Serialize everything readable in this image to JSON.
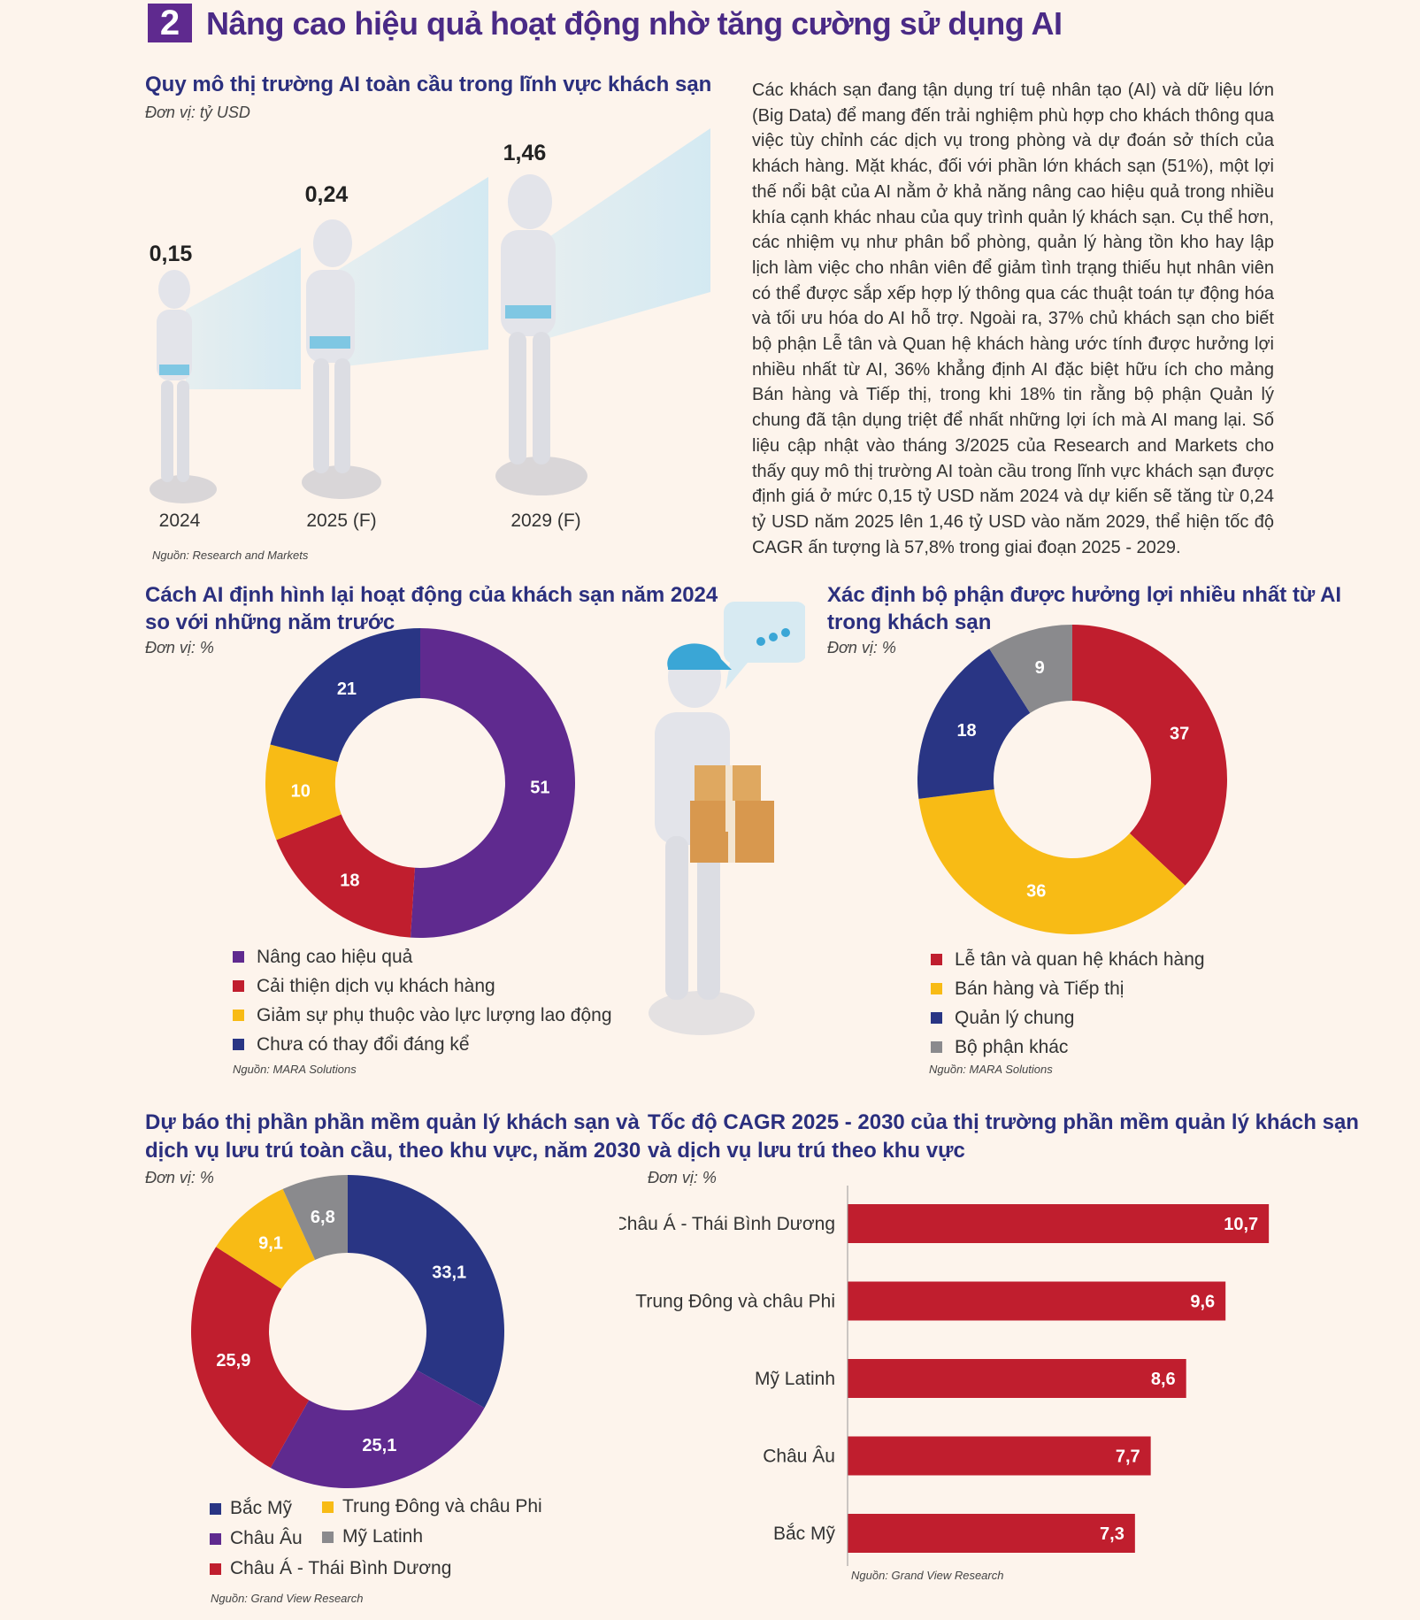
{
  "header": {
    "number": "2",
    "title": "Nâng cao hiệu quả hoạt động nhờ tăng cường sử dụng AI"
  },
  "market_size": {
    "title": "Quy mô thị trường AI toàn cầu trong lĩnh vực khách sạn",
    "unit": "Đơn vị: tỷ USD",
    "source": "Nguồn: Research and Markets",
    "chart_data": {
      "type": "bar",
      "categories": [
        "2024",
        "2025 (F)",
        "2029 (F)"
      ],
      "values": [
        0.15,
        0.24,
        1.46
      ],
      "labels": [
        "0,15",
        "0,24",
        "1,46"
      ],
      "ylabel": "tỷ USD"
    }
  },
  "paragraph": "Các khách sạn đang tận dụng trí tuệ nhân tạo (AI) và dữ liệu lớn (Big Data) để mang đến trải nghiệm phù hợp cho khách thông qua việc tùy chỉnh các dịch vụ trong phòng và dự đoán sở thích của khách hàng. Mặt khác, đối với phần lớn khách sạn (51%), một lợi thế nổi bật của AI nằm ở khả năng nâng cao hiệu quả trong nhiều khía cạnh khác nhau của quy trình quản lý khách sạn. Cụ thể hơn, các nhiệm vụ như phân bổ phòng, quản lý hàng tồn kho hay lập lịch làm việc cho nhân viên để giảm tình trạng thiếu hụt nhân viên có thể được sắp xếp hợp lý thông qua các thuật toán tự động hóa và tối ưu hóa do AI hỗ trợ. Ngoài ra, 37% chủ khách sạn cho biết bộ phận Lễ tân và Quan hệ khách hàng ước tính được hưởng lợi nhiều nhất từ AI, 36% khẳng định AI đặc biệt hữu ích cho mảng Bán hàng và Tiếp thị, trong khi 18% tin rằng bộ phận Quản lý chung đã tận dụng triệt để nhất những lợi ích mà AI mang lại. Số liệu cập nhật vào tháng 3/2025 của Research and Markets cho thấy quy mô thị trường AI toàn cầu trong lĩnh vực khách sạn được định giá ở mức 0,15 tỷ USD năm 2024 và dự kiến sẽ tăng từ 0,24 tỷ USD năm 2025 lên 1,46 tỷ USD vào năm 2029, thể hiện tốc độ CAGR ấn tượng là 57,8% trong giai đoạn 2025 - 2029.",
  "reshape": {
    "title_line1": "Cách AI định hình lại hoạt động của khách sạn năm 2024",
    "title_line2": "so với những năm trước",
    "unit": "Đơn vị: %",
    "source": "Nguồn: MARA Solutions",
    "chart_data": {
      "type": "pie",
      "slices": [
        {
          "label": "Nâng cao hiệu quả",
          "value": 51,
          "text": "51",
          "color": "#5f2a8f"
        },
        {
          "label": "Cải thiện dịch vụ khách hàng",
          "value": 18,
          "text": "18",
          "color": "#c01e2e"
        },
        {
          "label": "Giảm sự phụ thuộc vào lực lượng lao động",
          "value": 10,
          "text": "10",
          "color": "#f8bb15"
        },
        {
          "label": "Chưa có thay đổi đáng kể",
          "value": 21,
          "text": "21",
          "color": "#293584"
        }
      ]
    }
  },
  "departments": {
    "title_line1": "Xác định bộ phận được hưởng lợi nhiều nhất từ AI",
    "title_line2": "trong khách sạn",
    "unit": "Đơn vị: %",
    "source": "Nguồn: MARA Solutions",
    "chart_data": {
      "type": "pie",
      "slices": [
        {
          "label": "Lễ tân và quan hệ khách hàng",
          "value": 37,
          "text": "37",
          "color": "#c01e2e"
        },
        {
          "label": "Bán hàng và Tiếp thị",
          "value": 36,
          "text": "36",
          "color": "#f8bb15"
        },
        {
          "label": "Quản lý chung",
          "value": 18,
          "text": "18",
          "color": "#293584"
        },
        {
          "label": "Bộ phận khác",
          "value": 9,
          "text": "9",
          "color": "#8a8a8d"
        }
      ]
    }
  },
  "regional_share": {
    "title_line1": "Dự báo thị phần phần mềm quản lý khách sạn và",
    "title_line2": "dịch vụ lưu trú toàn cầu, theo khu vực, năm 2030",
    "unit": "Đơn vị: %",
    "source": "Nguồn: Grand View Research",
    "chart_data": {
      "type": "pie",
      "slices": [
        {
          "label": "Bắc Mỹ",
          "value": 33.1,
          "text": "33,1",
          "color": "#293584"
        },
        {
          "label": "Châu Âu",
          "value": 25.1,
          "text": "25,1",
          "color": "#5f2a8f"
        },
        {
          "label": "Châu Á - Thái Bình Dương",
          "value": 25.9,
          "text": "25,9",
          "color": "#c01e2e"
        },
        {
          "label": "Trung Đông và châu Phi",
          "value": 9.1,
          "text": "9,1",
          "color": "#f8bb15"
        },
        {
          "label": "Mỹ Latinh",
          "value": 6.8,
          "text": "6,8",
          "color": "#8a8a8d"
        }
      ]
    }
  },
  "cagr": {
    "title_line1": "Tốc độ CAGR 2025 - 2030 của thị trường phần mềm quản lý khách sạn",
    "title_line2": "và dịch vụ lưu trú theo khu vực",
    "unit": "Đơn vị: %",
    "source": "Nguồn: Grand View Research",
    "chart_data": {
      "type": "bar",
      "orientation": "horizontal",
      "color": "#c01e2e",
      "categories": [
        "Châu Á - Thái Bình Dương",
        "Trung Đông và châu Phi",
        "Mỹ Latinh",
        "Châu Âu",
        "Bắc Mỹ"
      ],
      "values": [
        10.7,
        9.6,
        8.6,
        7.7,
        7.3
      ],
      "labels": [
        "10,7",
        "9,6",
        "8,6",
        "7,7",
        "7,3"
      ]
    }
  }
}
